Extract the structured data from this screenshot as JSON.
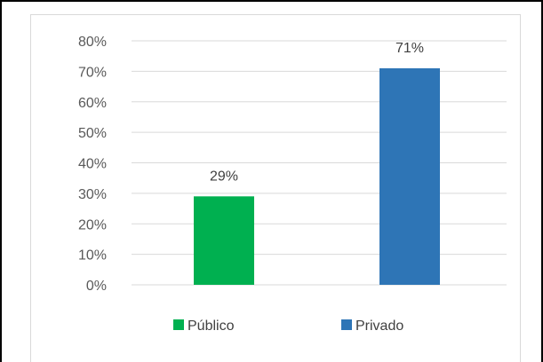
{
  "colors": {
    "Público": "#00b050",
    "Privado": "#2e75b6",
    "gridline": "#d9d9d9",
    "text": "#595959"
  },
  "chart_data": {
    "type": "bar",
    "categories": [
      "Público",
      "Privado"
    ],
    "values": [
      29,
      71
    ],
    "data_labels": [
      "29%",
      "71%"
    ],
    "yticks": [
      "0%",
      "10%",
      "20%",
      "30%",
      "40%",
      "50%",
      "60%",
      "70%",
      "80%"
    ],
    "ylim": [
      0,
      80
    ],
    "grid": true,
    "legend": {
      "placement": "bottom",
      "entries": [
        "Público",
        "Privado"
      ]
    },
    "title": "",
    "xlabel": "",
    "ylabel": ""
  }
}
